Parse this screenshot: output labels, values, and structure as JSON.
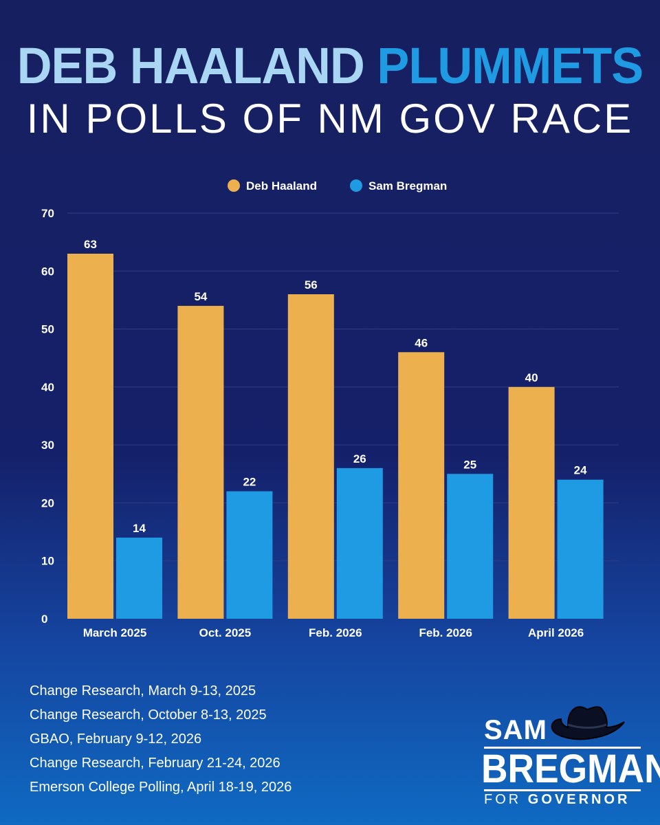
{
  "header": {
    "title_part1": "DEB HAALAND",
    "title_part2": "PLUMMETS",
    "subtitle": "IN POLLS OF NM GOV RACE"
  },
  "chart_data": {
    "type": "bar",
    "categories": [
      "March 2025",
      "Oct. 2025",
      "Feb. 2026",
      "Feb. 2026",
      "April 2026"
    ],
    "series": [
      {
        "name": "Deb Haaland",
        "color": "#edb04f",
        "values": [
          63,
          54,
          56,
          46,
          40
        ]
      },
      {
        "name": "Sam Bregman",
        "color": "#1f9be3",
        "values": [
          14,
          22,
          26,
          25,
          24
        ]
      }
    ],
    "ylim": [
      0,
      70
    ],
    "yticks": [
      0,
      10,
      20,
      30,
      40,
      50,
      60,
      70
    ],
    "legend_position": "top-center",
    "grid": true
  },
  "sources": [
    "Change Research, March 9-13, 2025",
    "Change Research, October 8-13, 2025",
    "GBAO, February 9-12, 2026",
    "Change Research, February 21-24, 2026",
    "Emerson College Polling, April 18-19, 2026"
  ],
  "logo": {
    "first": "SAM",
    "last": "BREGMAN",
    "for_text": "FOR",
    "office": "GOVERNOR"
  },
  "colors": {
    "background_top": "#162060",
    "background_bottom": "#0f6ac2",
    "title_light": "#a9d6f2",
    "title_accent": "#1f9be3"
  }
}
